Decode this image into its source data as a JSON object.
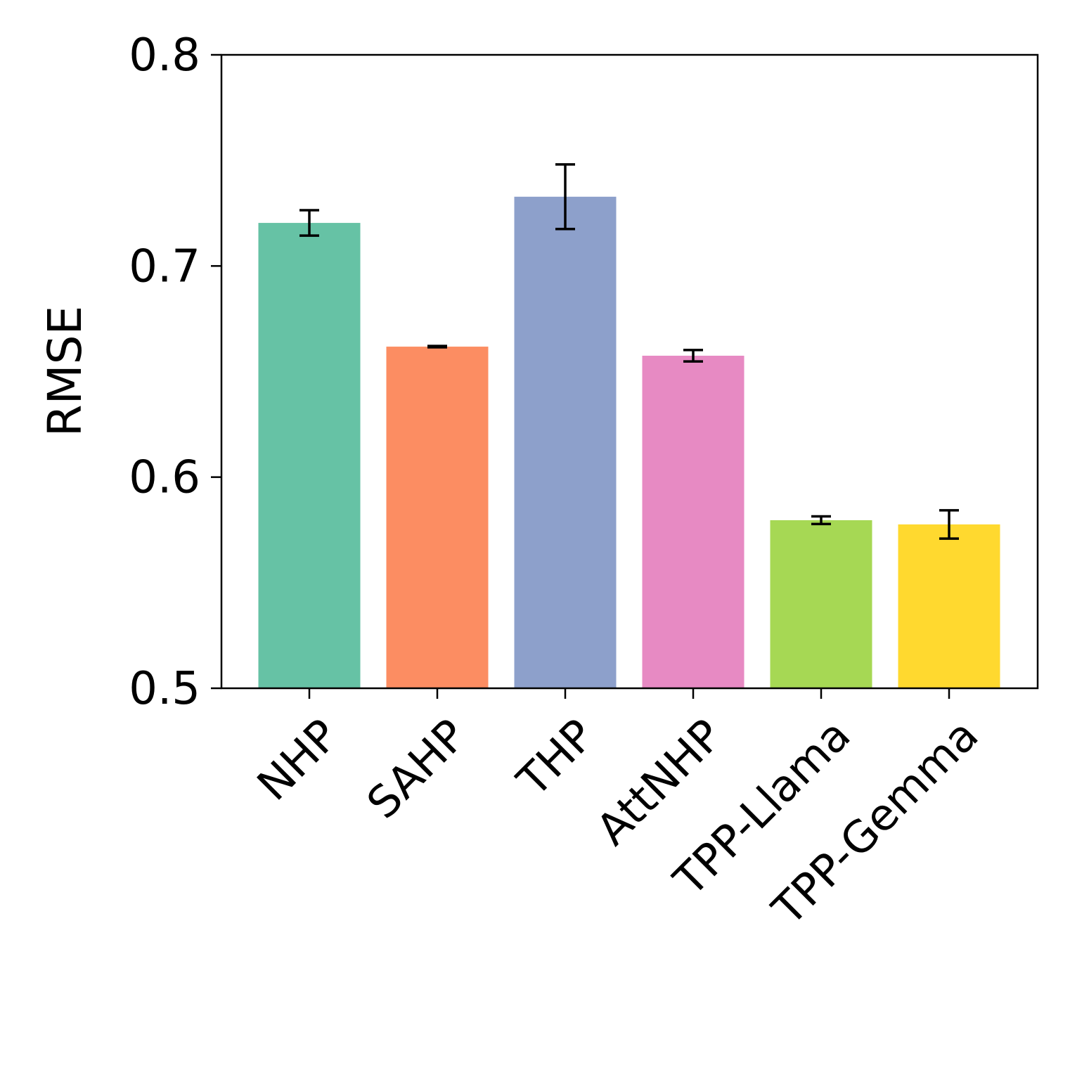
{
  "chart_data": {
    "type": "bar",
    "title": "",
    "xlabel": "",
    "ylabel": "RMSE",
    "ylim": [
      0.5,
      0.8
    ],
    "yticks": [
      "0.5",
      "0.6",
      "0.7",
      "0.8"
    ],
    "grid": false,
    "categories": [
      "NHP",
      "SAHP",
      "THP",
      "AttNHP",
      "TPP-Llama",
      "TPP-Gemma"
    ],
    "values": [
      0.7204,
      0.6618,
      0.7328,
      0.6575,
      0.5796,
      0.5776
    ],
    "errors": [
      0.006,
      0.0003,
      0.0153,
      0.0027,
      0.0018,
      0.0067
    ],
    "colors": [
      "#66c2a5",
      "#fc8d62",
      "#8da0cb",
      "#e78ac3",
      "#a6d854",
      "#ffd92f"
    ]
  }
}
